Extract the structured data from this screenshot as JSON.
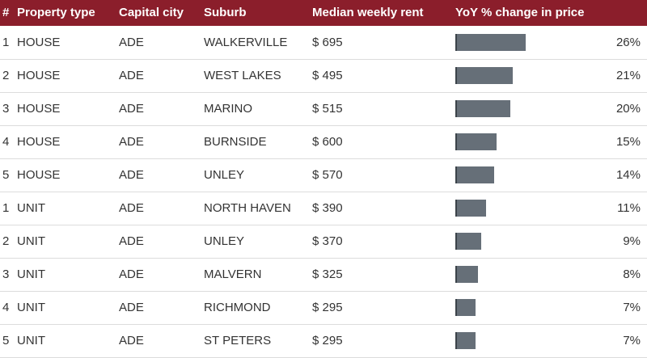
{
  "header": {
    "index": "#",
    "property_type": "Property type",
    "capital_city": "Capital city",
    "suburb": "Suburb",
    "median_rent": "Median weekly rent",
    "yoy_change": "YoY % change in price"
  },
  "colors": {
    "header_bg": "#8b1e2b",
    "bar": "#666f78"
  },
  "rows": [
    {
      "rank": "1",
      "type": "HOUSE",
      "city": "ADE",
      "suburb": "WALKERVILLE",
      "rent": "$ 695",
      "pct": "26%",
      "value": 26
    },
    {
      "rank": "2",
      "type": "HOUSE",
      "city": "ADE",
      "suburb": "WEST LAKES",
      "rent": "$ 495",
      "pct": "21%",
      "value": 21
    },
    {
      "rank": "3",
      "type": "HOUSE",
      "city": "ADE",
      "suburb": "MARINO",
      "rent": "$ 515",
      "pct": "20%",
      "value": 20
    },
    {
      "rank": "4",
      "type": "HOUSE",
      "city": "ADE",
      "suburb": "BURNSIDE",
      "rent": "$ 600",
      "pct": "15%",
      "value": 15
    },
    {
      "rank": "5",
      "type": "HOUSE",
      "city": "ADE",
      "suburb": "UNLEY",
      "rent": "$ 570",
      "pct": "14%",
      "value": 14
    },
    {
      "rank": "1",
      "type": "UNIT",
      "city": "ADE",
      "suburb": "NORTH HAVEN",
      "rent": "$ 390",
      "pct": "11%",
      "value": 11
    },
    {
      "rank": "2",
      "type": "UNIT",
      "city": "ADE",
      "suburb": "UNLEY",
      "rent": "$ 370",
      "pct": "9%",
      "value": 9
    },
    {
      "rank": "3",
      "type": "UNIT",
      "city": "ADE",
      "suburb": "MALVERN",
      "rent": "$ 325",
      "pct": "8%",
      "value": 8
    },
    {
      "rank": "4",
      "type": "UNIT",
      "city": "ADE",
      "suburb": "RICHMOND",
      "rent": "$ 295",
      "pct": "7%",
      "value": 7
    },
    {
      "rank": "5",
      "type": "UNIT",
      "city": "ADE",
      "suburb": "ST PETERS",
      "rent": "$ 295",
      "pct": "7%",
      "value": 7
    }
  ],
  "chart_data": {
    "type": "table",
    "columns": [
      "#",
      "Property type",
      "Capital city",
      "Suburb",
      "Median weekly rent",
      "YoY % change in price"
    ],
    "categories": [
      "WALKERVILLE",
      "WEST LAKES",
      "MARINO",
      "BURNSIDE",
      "UNLEY",
      "NORTH HAVEN",
      "UNLEY",
      "MALVERN",
      "RICHMOND",
      "ST PETERS"
    ],
    "values": [
      26,
      21,
      20,
      15,
      14,
      11,
      9,
      8,
      7,
      7
    ],
    "rent": [
      695,
      495,
      515,
      600,
      570,
      390,
      370,
      325,
      295,
      295
    ],
    "property_type": [
      "HOUSE",
      "HOUSE",
      "HOUSE",
      "HOUSE",
      "HOUSE",
      "UNIT",
      "UNIT",
      "UNIT",
      "UNIT",
      "UNIT"
    ],
    "xlim": [
      0,
      60
    ],
    "grid": false
  }
}
